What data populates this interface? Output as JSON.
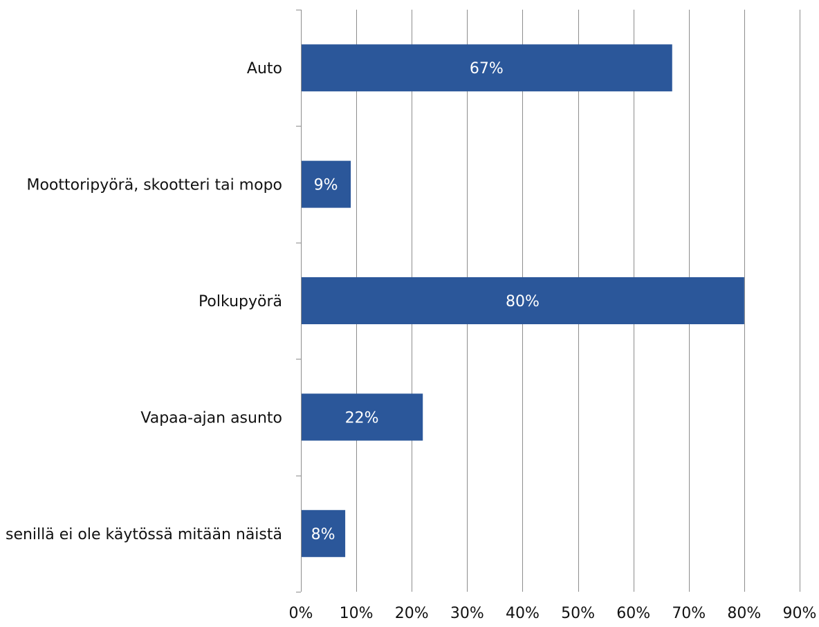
{
  "chart_data": {
    "type": "bar",
    "orientation": "horizontal",
    "categories": [
      "Auto",
      "Moottoripyörä, skootteri tai mopo",
      "Polkupyörä",
      "Vapaa-ajan asunto",
      "senillä ei ole käytössä mitään näistä"
    ],
    "values": [
      67,
      9,
      80,
      22,
      8
    ],
    "data_labels": [
      "67%",
      "9%",
      "80%",
      "22%",
      "8%"
    ],
    "x_ticks": [
      "0%",
      "10%",
      "20%",
      "30%",
      "40%",
      "50%",
      "60%",
      "70%",
      "80%",
      "90%"
    ],
    "xlim": [
      0,
      90
    ],
    "title": "",
    "xlabel": "",
    "ylabel": "",
    "grid": true,
    "legend": "none",
    "colors": {
      "bar": "#2b579a",
      "grid": "#8c8c8c",
      "text": "#111111",
      "data_label": "#ffffff"
    }
  }
}
